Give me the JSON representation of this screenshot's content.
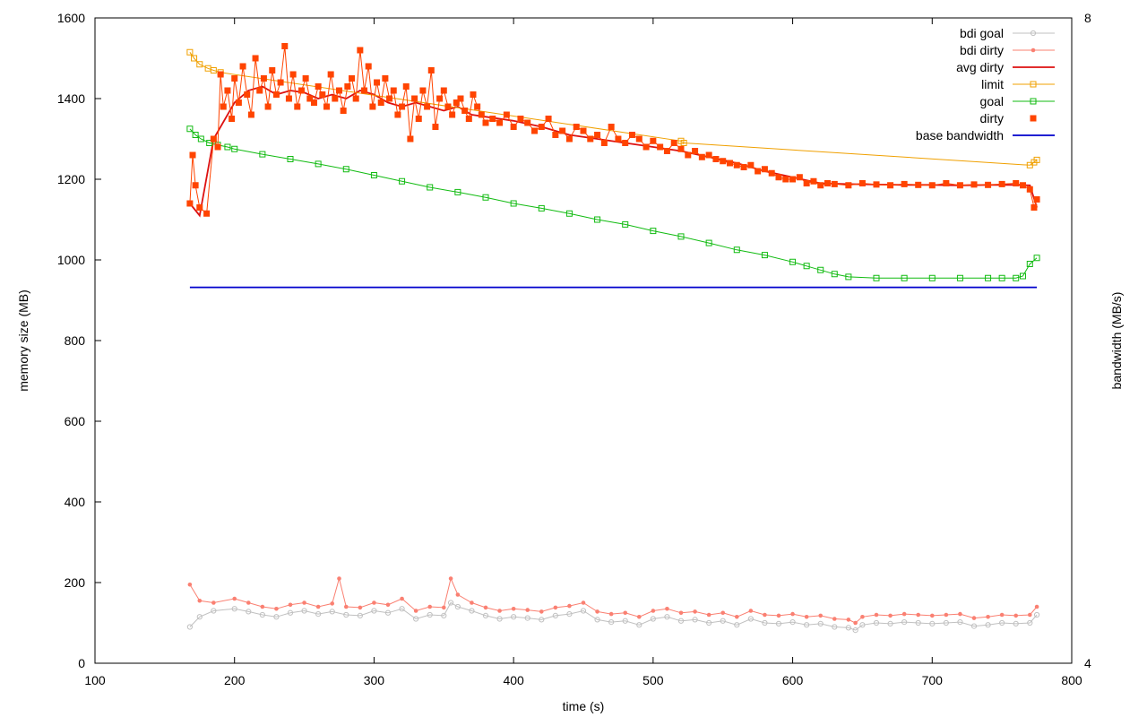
{
  "chart_data": {
    "type": "line",
    "title": "",
    "xlabel": "time (s)",
    "ylabel": "memory size (MB)",
    "y2label": "bandwidth (MB/s)",
    "xlim": [
      100,
      800
    ],
    "ylim": [
      0,
      1600
    ],
    "y2lim": [
      4,
      8
    ],
    "x_ticks": [
      100,
      200,
      300,
      400,
      500,
      600,
      700,
      800
    ],
    "y_ticks": [
      0,
      200,
      400,
      600,
      800,
      1000,
      1200,
      1400,
      1600
    ],
    "y2_ticks": [
      4,
      8
    ],
    "grid": false,
    "legend_position": "top-right",
    "series": [
      {
        "name": "bdi goal",
        "color": "#c0c0c0",
        "marker": "circle",
        "axis": "y",
        "x": [
          168,
          175,
          185,
          200,
          210,
          220,
          230,
          240,
          250,
          260,
          270,
          280,
          290,
          300,
          310,
          320,
          330,
          340,
          350,
          355,
          360,
          370,
          380,
          390,
          400,
          410,
          420,
          430,
          440,
          450,
          460,
          470,
          480,
          490,
          500,
          510,
          520,
          530,
          540,
          550,
          560,
          570,
          580,
          590,
          600,
          610,
          620,
          630,
          640,
          645,
          650,
          660,
          670,
          680,
          690,
          700,
          710,
          720,
          730,
          740,
          750,
          760,
          770,
          775
        ],
        "values": [
          90,
          115,
          130,
          135,
          128,
          120,
          115,
          125,
          130,
          122,
          128,
          120,
          118,
          130,
          125,
          135,
          110,
          120,
          118,
          150,
          140,
          130,
          118,
          110,
          115,
          112,
          108,
          118,
          122,
          130,
          108,
          102,
          105,
          95,
          110,
          115,
          105,
          108,
          100,
          105,
          95,
          110,
          100,
          98,
          102,
          95,
          98,
          90,
          88,
          82,
          95,
          100,
          98,
          102,
          100,
          98,
          100,
          102,
          92,
          95,
          100,
          98,
          100,
          120
        ]
      },
      {
        "name": "bdi dirty",
        "color": "#fa8072",
        "marker": "dot",
        "axis": "y",
        "x": [
          168,
          175,
          185,
          200,
          210,
          220,
          230,
          240,
          250,
          260,
          270,
          275,
          280,
          290,
          300,
          310,
          320,
          330,
          340,
          350,
          355,
          360,
          370,
          380,
          390,
          400,
          410,
          420,
          430,
          440,
          450,
          460,
          470,
          480,
          490,
          500,
          510,
          520,
          530,
          540,
          550,
          560,
          570,
          580,
          590,
          600,
          610,
          620,
          630,
          640,
          645,
          650,
          660,
          670,
          680,
          690,
          700,
          710,
          720,
          730,
          740,
          750,
          760,
          770,
          775
        ],
        "values": [
          195,
          155,
          150,
          160,
          150,
          140,
          135,
          145,
          150,
          140,
          148,
          210,
          140,
          138,
          150,
          145,
          160,
          130,
          140,
          138,
          210,
          170,
          150,
          138,
          130,
          135,
          132,
          128,
          138,
          142,
          150,
          128,
          122,
          125,
          115,
          130,
          135,
          125,
          128,
          120,
          125,
          115,
          130,
          120,
          118,
          122,
          115,
          118,
          110,
          108,
          100,
          115,
          120,
          118,
          122,
          120,
          118,
          120,
          122,
          112,
          115,
          120,
          118,
          120,
          140
        ]
      },
      {
        "name": "avg dirty",
        "color": "#dd1111",
        "marker": "none",
        "axis": "y",
        "x": [
          168,
          175,
          185,
          200,
          210,
          220,
          230,
          240,
          250,
          260,
          270,
          280,
          290,
          300,
          310,
          320,
          330,
          340,
          350,
          360,
          370,
          380,
          390,
          400,
          420,
          440,
          460,
          480,
          500,
          520,
          540,
          560,
          580,
          600,
          620,
          640,
          660,
          680,
          700,
          720,
          740,
          760,
          770,
          775
        ],
        "values": [
          1140,
          1110,
          1300,
          1390,
          1420,
          1430,
          1410,
          1420,
          1415,
          1400,
          1410,
          1400,
          1420,
          1410,
          1390,
          1380,
          1390,
          1380,
          1370,
          1380,
          1360,
          1355,
          1350,
          1345,
          1330,
          1310,
          1300,
          1290,
          1280,
          1270,
          1255,
          1240,
          1220,
          1205,
          1190,
          1188,
          1187,
          1186,
          1186,
          1185,
          1186,
          1186,
          1185,
          1130
        ]
      },
      {
        "name": "limit",
        "color": "#f0a000",
        "marker": "square-open",
        "axis": "y",
        "x": [
          168,
          171,
          175,
          181,
          185,
          190,
          520,
          522,
          770,
          773,
          775
        ],
        "values": [
          1515,
          1500,
          1485,
          1475,
          1470,
          1465,
          1295,
          1290,
          1235,
          1242,
          1248
        ]
      },
      {
        "name": "goal",
        "color": "#11bb11",
        "marker": "square-open",
        "axis": "y",
        "x": [
          168,
          172,
          176,
          182,
          188,
          195,
          200,
          220,
          240,
          260,
          280,
          300,
          320,
          340,
          360,
          380,
          400,
          420,
          440,
          460,
          480,
          500,
          520,
          540,
          560,
          580,
          600,
          610,
          620,
          630,
          640,
          660,
          680,
          700,
          720,
          740,
          750,
          760,
          765,
          770,
          775
        ],
        "values": [
          1325,
          1310,
          1300,
          1290,
          1285,
          1280,
          1275,
          1262,
          1250,
          1238,
          1225,
          1210,
          1195,
          1180,
          1168,
          1155,
          1140,
          1128,
          1115,
          1100,
          1088,
          1072,
          1058,
          1042,
          1025,
          1012,
          995,
          985,
          975,
          965,
          958,
          955,
          955,
          955,
          955,
          955,
          955,
          955,
          960,
          990,
          1005
        ]
      },
      {
        "name": "dirty",
        "color": "#ff4400",
        "marker": "square-filled",
        "axis": "y",
        "x": [
          168,
          170,
          172,
          175,
          180,
          185,
          188,
          190,
          192,
          195,
          198,
          200,
          203,
          206,
          209,
          212,
          215,
          218,
          221,
          224,
          227,
          230,
          233,
          236,
          239,
          242,
          245,
          248,
          251,
          254,
          257,
          260,
          263,
          266,
          269,
          272,
          275,
          278,
          281,
          284,
          287,
          290,
          293,
          296,
          299,
          302,
          305,
          308,
          311,
          314,
          317,
          320,
          323,
          326,
          329,
          332,
          335,
          338,
          341,
          344,
          347,
          350,
          353,
          356,
          359,
          362,
          365,
          368,
          371,
          374,
          377,
          380,
          385,
          390,
          395,
          400,
          405,
          410,
          415,
          420,
          425,
          430,
          435,
          440,
          445,
          450,
          455,
          460,
          465,
          470,
          475,
          480,
          485,
          490,
          495,
          500,
          505,
          510,
          515,
          520,
          525,
          530,
          535,
          540,
          545,
          550,
          555,
          560,
          565,
          570,
          575,
          580,
          585,
          590,
          595,
          600,
          605,
          610,
          615,
          620,
          625,
          630,
          640,
          650,
          660,
          670,
          680,
          690,
          700,
          710,
          720,
          730,
          740,
          750,
          760,
          765,
          770,
          773,
          775
        ],
        "values": [
          1140,
          1260,
          1185,
          1130,
          1115,
          1300,
          1280,
          1460,
          1380,
          1420,
          1350,
          1450,
          1390,
          1480,
          1410,
          1360,
          1500,
          1420,
          1450,
          1380,
          1470,
          1410,
          1440,
          1530,
          1400,
          1460,
          1380,
          1420,
          1450,
          1400,
          1390,
          1430,
          1410,
          1380,
          1460,
          1400,
          1420,
          1370,
          1430,
          1450,
          1400,
          1520,
          1420,
          1480,
          1380,
          1440,
          1390,
          1450,
          1400,
          1420,
          1360,
          1380,
          1430,
          1300,
          1400,
          1350,
          1420,
          1380,
          1470,
          1330,
          1400,
          1420,
          1380,
          1360,
          1390,
          1400,
          1370,
          1350,
          1410,
          1380,
          1360,
          1340,
          1350,
          1340,
          1360,
          1330,
          1350,
          1340,
          1320,
          1330,
          1350,
          1310,
          1320,
          1300,
          1330,
          1320,
          1300,
          1310,
          1290,
          1330,
          1300,
          1290,
          1310,
          1300,
          1280,
          1295,
          1280,
          1270,
          1290,
          1275,
          1260,
          1270,
          1255,
          1260,
          1250,
          1245,
          1240,
          1235,
          1230,
          1235,
          1220,
          1225,
          1215,
          1205,
          1200,
          1200,
          1205,
          1190,
          1195,
          1185,
          1190,
          1188,
          1185,
          1190,
          1187,
          1185,
          1188,
          1186,
          1185,
          1190,
          1185,
          1187,
          1186,
          1188,
          1190,
          1185,
          1175,
          1130,
          1150
        ]
      },
      {
        "name": "base bandwidth",
        "color": "#0000cc",
        "marker": "none",
        "axis": "y2",
        "x": [
          168,
          775
        ],
        "values": [
          6.33,
          6.33
        ]
      }
    ]
  }
}
